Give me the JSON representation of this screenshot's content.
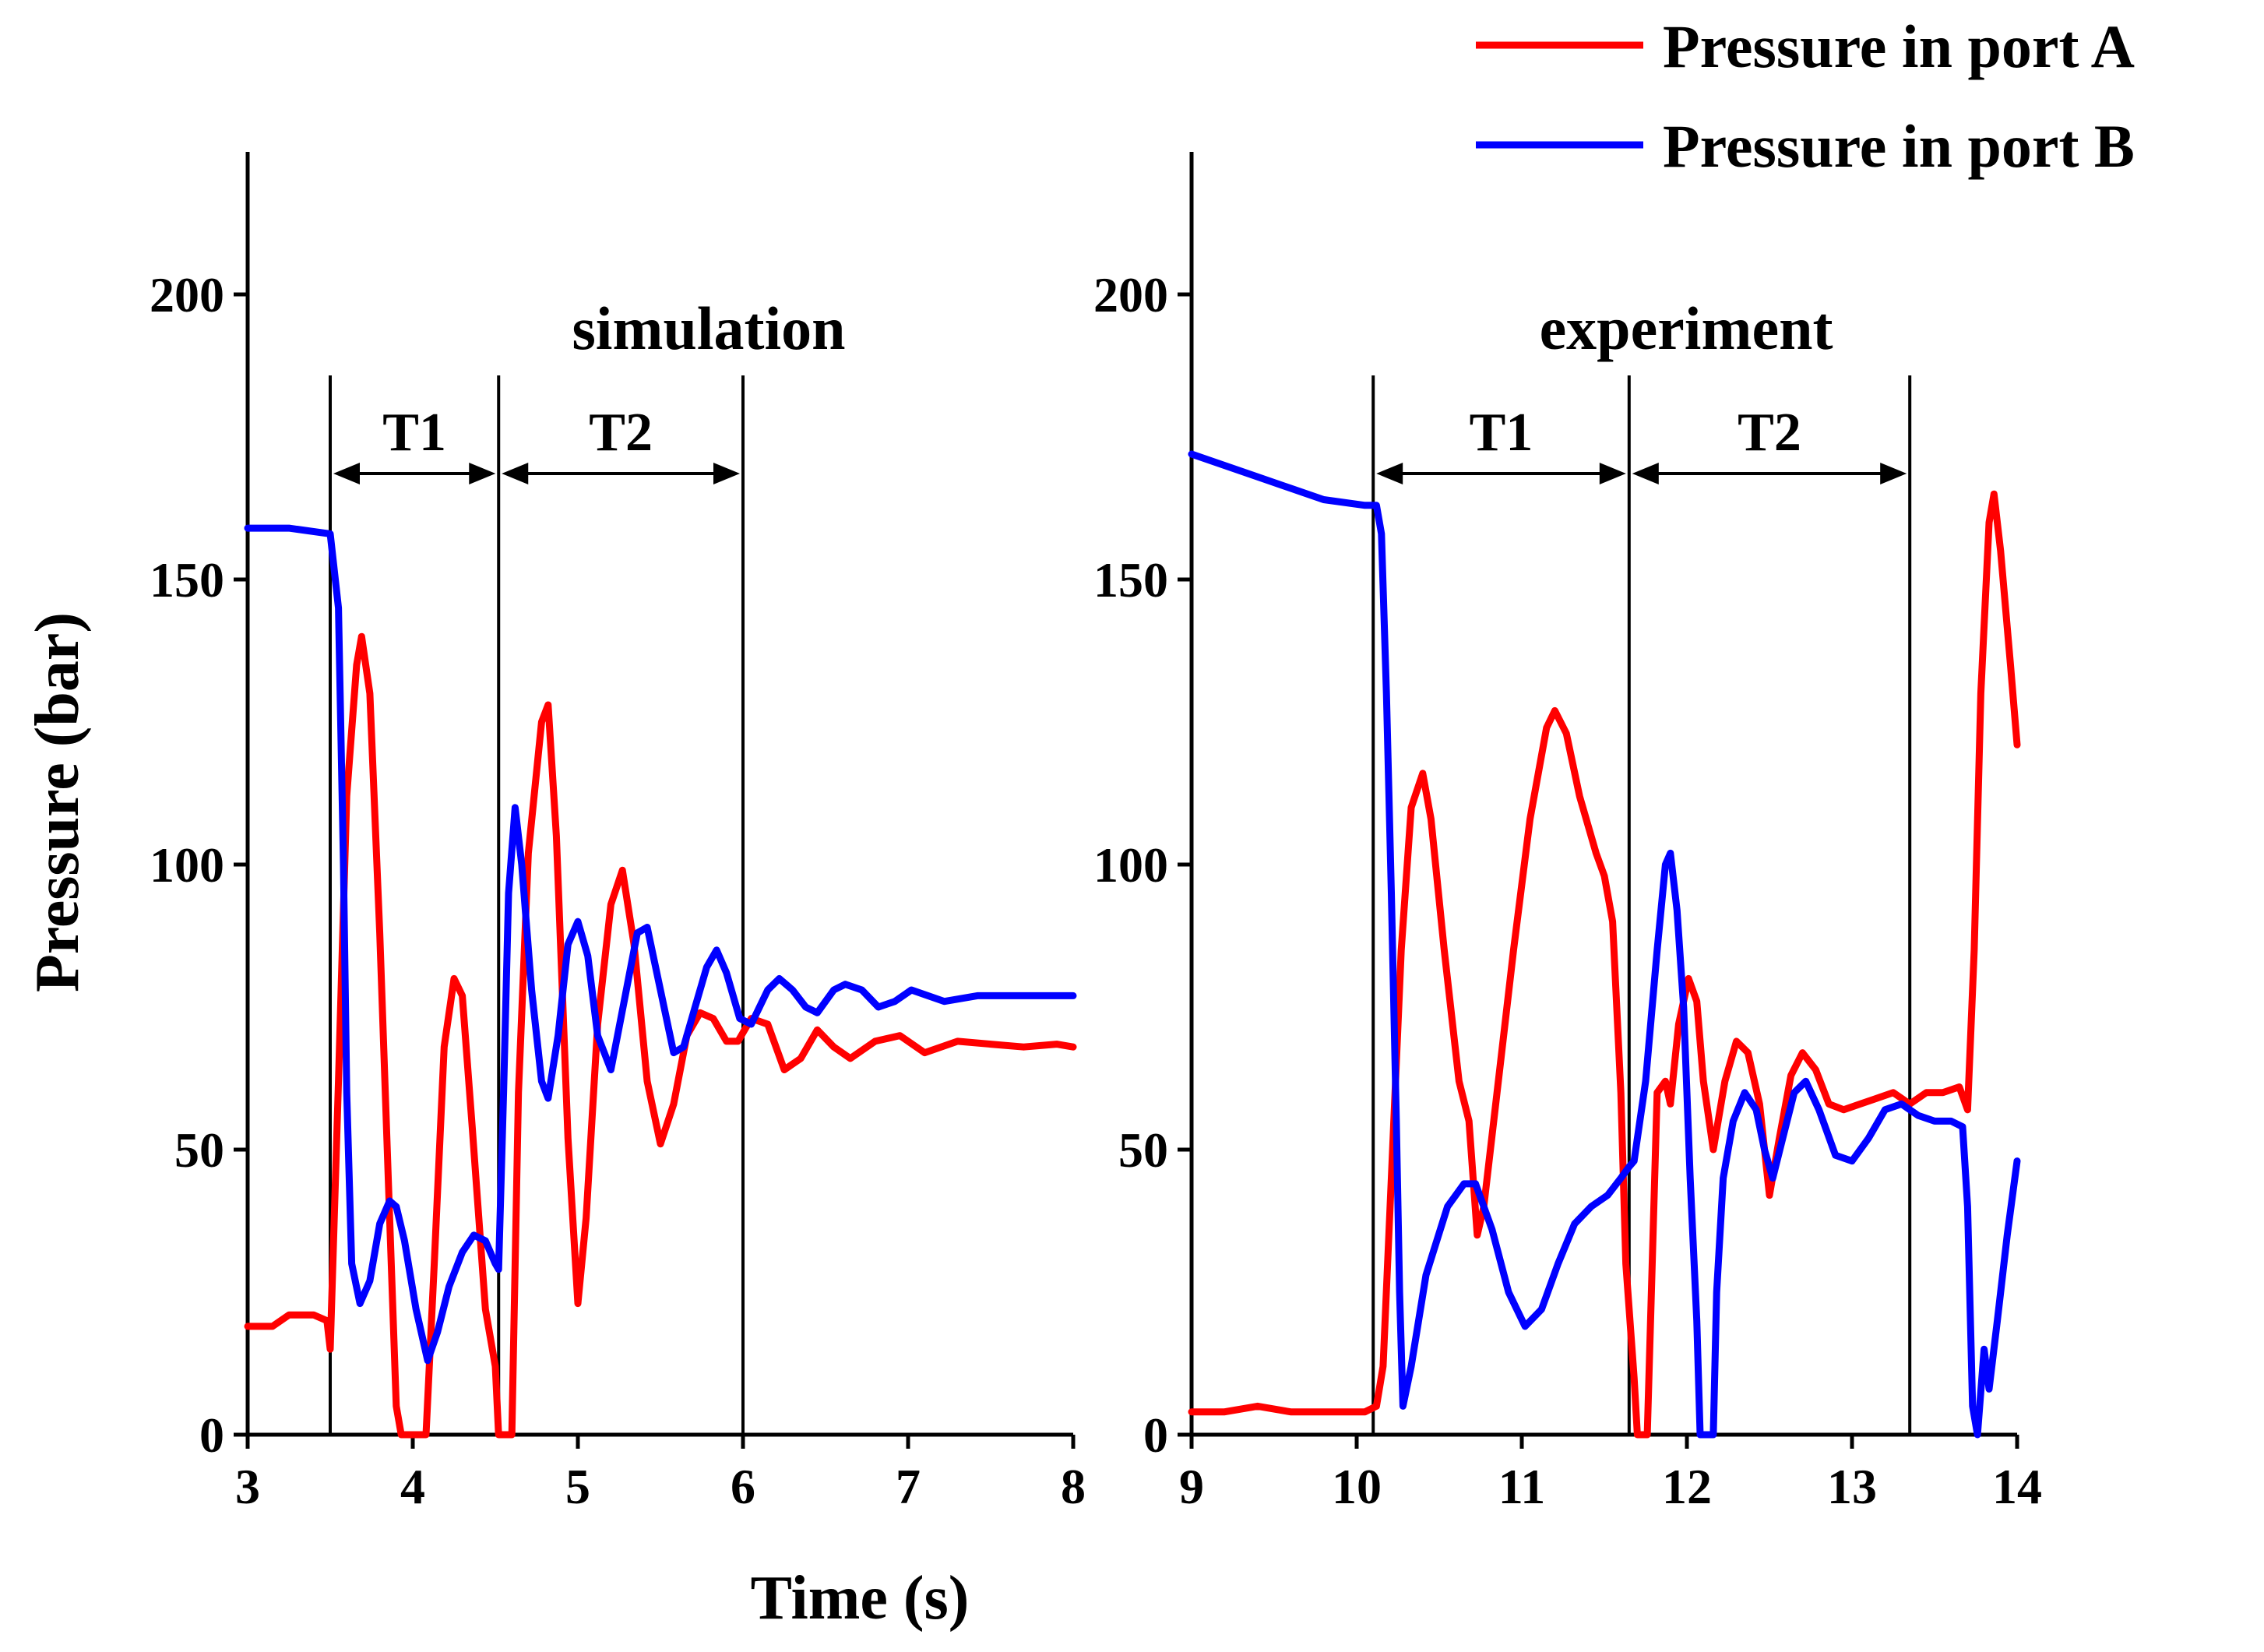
{
  "chart_data": [
    {
      "type": "line",
      "panel_label": "simulation",
      "xlim": [
        3,
        8
      ],
      "ylim": [
        0,
        225
      ],
      "x_ticks": [
        3,
        4,
        5,
        6,
        7,
        8
      ],
      "y_ticks": [
        0,
        50,
        100,
        150,
        200
      ],
      "phase_markers": [
        3.5,
        4.52,
        6.0
      ],
      "phases": [
        {
          "label": "T1",
          "from": 3.5,
          "to": 4.52
        },
        {
          "label": "T2",
          "from": 4.52,
          "to": 6.0
        }
      ],
      "series": [
        {
          "name": "Pressure in port A",
          "color": "#ff0000",
          "points": [
            [
              3.0,
              19
            ],
            [
              3.15,
              19
            ],
            [
              3.25,
              21
            ],
            [
              3.4,
              21
            ],
            [
              3.48,
              20
            ],
            [
              3.5,
              15
            ],
            [
              3.55,
              62
            ],
            [
              3.6,
              112
            ],
            [
              3.66,
              135
            ],
            [
              3.69,
              140
            ],
            [
              3.74,
              130
            ],
            [
              3.8,
              88
            ],
            [
              3.86,
              38
            ],
            [
              3.9,
              5
            ],
            [
              3.93,
              0
            ],
            [
              4.08,
              0
            ],
            [
              4.13,
              30
            ],
            [
              4.19,
              68
            ],
            [
              4.25,
              80
            ],
            [
              4.3,
              77
            ],
            [
              4.36,
              54
            ],
            [
              4.44,
              22
            ],
            [
              4.5,
              12
            ],
            [
              4.52,
              0
            ],
            [
              4.55,
              0
            ],
            [
              4.6,
              0
            ],
            [
              4.64,
              60
            ],
            [
              4.7,
              102
            ],
            [
              4.78,
              125
            ],
            [
              4.82,
              128
            ],
            [
              4.87,
              105
            ],
            [
              4.94,
              52
            ],
            [
              5.0,
              23
            ],
            [
              5.05,
              38
            ],
            [
              5.12,
              72
            ],
            [
              5.2,
              93
            ],
            [
              5.27,
              99
            ],
            [
              5.34,
              86
            ],
            [
              5.42,
              62
            ],
            [
              5.5,
              51
            ],
            [
              5.58,
              58
            ],
            [
              5.66,
              70
            ],
            [
              5.74,
              74
            ],
            [
              5.82,
              73
            ],
            [
              5.9,
              69
            ],
            [
              5.97,
              69
            ],
            [
              6.05,
              73
            ],
            [
              6.15,
              72
            ],
            [
              6.25,
              64
            ],
            [
              6.35,
              66
            ],
            [
              6.45,
              71
            ],
            [
              6.55,
              68
            ],
            [
              6.65,
              66
            ],
            [
              6.8,
              69
            ],
            [
              6.95,
              70
            ],
            [
              7.1,
              67
            ],
            [
              7.3,
              69
            ],
            [
              7.5,
              68.5
            ],
            [
              7.7,
              68
            ],
            [
              7.9,
              68.5
            ],
            [
              8.0,
              68
            ]
          ]
        },
        {
          "name": "Pressure in port B",
          "color": "#0000ff",
          "points": [
            [
              3.0,
              159
            ],
            [
              3.25,
              159
            ],
            [
              3.5,
              158
            ],
            [
              3.55,
              145
            ],
            [
              3.58,
              100
            ],
            [
              3.6,
              60
            ],
            [
              3.63,
              30
            ],
            [
              3.68,
              23
            ],
            [
              3.74,
              27
            ],
            [
              3.8,
              37
            ],
            [
              3.86,
              41
            ],
            [
              3.9,
              40
            ],
            [
              3.95,
              34
            ],
            [
              4.02,
              22
            ],
            [
              4.09,
              13
            ],
            [
              4.15,
              18
            ],
            [
              4.22,
              26
            ],
            [
              4.3,
              32
            ],
            [
              4.37,
              35
            ],
            [
              4.44,
              34
            ],
            [
              4.5,
              30
            ],
            [
              4.52,
              29
            ],
            [
              4.55,
              60
            ],
            [
              4.58,
              95
            ],
            [
              4.62,
              110
            ],
            [
              4.66,
              100
            ],
            [
              4.72,
              78
            ],
            [
              4.78,
              62
            ],
            [
              4.82,
              59
            ],
            [
              4.88,
              70
            ],
            [
              4.94,
              86
            ],
            [
              5.0,
              90
            ],
            [
              5.06,
              84
            ],
            [
              5.12,
              70
            ],
            [
              5.2,
              64
            ],
            [
              5.28,
              76
            ],
            [
              5.36,
              88
            ],
            [
              5.42,
              89
            ],
            [
              5.5,
              78
            ],
            [
              5.58,
              67
            ],
            [
              5.64,
              68
            ],
            [
              5.72,
              76
            ],
            [
              5.78,
              82
            ],
            [
              5.84,
              85
            ],
            [
              5.9,
              81
            ],
            [
              5.98,
              73
            ],
            [
              6.05,
              72
            ],
            [
              6.15,
              78
            ],
            [
              6.22,
              80
            ],
            [
              6.3,
              78
            ],
            [
              6.38,
              75
            ],
            [
              6.45,
              74
            ],
            [
              6.55,
              78
            ],
            [
              6.62,
              79
            ],
            [
              6.72,
              78
            ],
            [
              6.82,
              75
            ],
            [
              6.92,
              76
            ],
            [
              7.02,
              78
            ],
            [
              7.12,
              77
            ],
            [
              7.22,
              76
            ],
            [
              7.42,
              77
            ],
            [
              7.62,
              77
            ],
            [
              7.82,
              77
            ],
            [
              8.0,
              77
            ]
          ]
        }
      ]
    },
    {
      "type": "line",
      "panel_label": "experiment",
      "xlim": [
        9,
        14
      ],
      "ylim": [
        0,
        225
      ],
      "x_ticks": [
        9,
        10,
        11,
        12,
        13,
        14
      ],
      "y_ticks": [
        0,
        50,
        100,
        150,
        200
      ],
      "phase_markers": [
        10.1,
        11.65,
        13.35
      ],
      "phases": [
        {
          "label": "T1",
          "from": 10.1,
          "to": 11.65
        },
        {
          "label": "T2",
          "from": 11.65,
          "to": 13.35
        }
      ],
      "series": [
        {
          "name": "Pressure in port A",
          "color": "#ff0000",
          "points": [
            [
              9.0,
              4
            ],
            [
              9.2,
              4
            ],
            [
              9.4,
              5
            ],
            [
              9.6,
              4
            ],
            [
              9.8,
              4
            ],
            [
              10.05,
              4
            ],
            [
              10.12,
              5
            ],
            [
              10.16,
              12
            ],
            [
              10.21,
              45
            ],
            [
              10.27,
              85
            ],
            [
              10.33,
              110
            ],
            [
              10.4,
              116
            ],
            [
              10.45,
              108
            ],
            [
              10.53,
              85
            ],
            [
              10.62,
              62
            ],
            [
              10.68,
              55
            ],
            [
              10.73,
              35
            ],
            [
              10.77,
              40
            ],
            [
              10.85,
              60
            ],
            [
              10.95,
              85
            ],
            [
              11.05,
              108
            ],
            [
              11.15,
              124
            ],
            [
              11.2,
              127
            ],
            [
              11.27,
              123
            ],
            [
              11.35,
              112
            ],
            [
              11.45,
              102
            ],
            [
              11.5,
              98
            ],
            [
              11.55,
              90
            ],
            [
              11.6,
              60
            ],
            [
              11.63,
              30
            ],
            [
              11.68,
              10
            ],
            [
              11.7,
              0
            ],
            [
              11.76,
              0
            ],
            [
              11.82,
              60
            ],
            [
              11.87,
              62
            ],
            [
              11.9,
              58
            ],
            [
              11.95,
              72
            ],
            [
              12.01,
              80
            ],
            [
              12.06,
              76
            ],
            [
              12.1,
              62
            ],
            [
              12.16,
              50
            ],
            [
              12.23,
              62
            ],
            [
              12.3,
              69
            ],
            [
              12.37,
              67
            ],
            [
              12.44,
              58
            ],
            [
              12.5,
              42
            ],
            [
              12.56,
              52
            ],
            [
              12.63,
              63
            ],
            [
              12.7,
              67
            ],
            [
              12.78,
              64
            ],
            [
              12.86,
              58
            ],
            [
              12.95,
              57
            ],
            [
              13.05,
              58
            ],
            [
              13.15,
              59
            ],
            [
              13.25,
              60
            ],
            [
              13.35,
              58
            ],
            [
              13.45,
              60
            ],
            [
              13.55,
              60
            ],
            [
              13.65,
              61
            ],
            [
              13.7,
              57
            ],
            [
              13.74,
              85
            ],
            [
              13.78,
              130
            ],
            [
              13.83,
              160
            ],
            [
              13.86,
              165
            ],
            [
              13.9,
              155
            ],
            [
              13.96,
              135
            ],
            [
              14.0,
              121
            ]
          ]
        },
        {
          "name": "Pressure in port B",
          "color": "#0000ff",
          "points": [
            [
              9.0,
              172
            ],
            [
              9.2,
              170
            ],
            [
              9.4,
              168
            ],
            [
              9.6,
              166
            ],
            [
              9.8,
              164
            ],
            [
              10.05,
              163
            ],
            [
              10.12,
              163
            ],
            [
              10.15,
              158
            ],
            [
              10.18,
              130
            ],
            [
              10.21,
              95
            ],
            [
              10.24,
              55
            ],
            [
              10.26,
              25
            ],
            [
              10.28,
              5
            ],
            [
              10.33,
              12
            ],
            [
              10.42,
              28
            ],
            [
              10.55,
              40
            ],
            [
              10.65,
              44
            ],
            [
              10.72,
              44
            ],
            [
              10.82,
              36
            ],
            [
              10.92,
              25
            ],
            [
              11.02,
              19
            ],
            [
              11.12,
              22
            ],
            [
              11.22,
              30
            ],
            [
              11.32,
              37
            ],
            [
              11.42,
              40
            ],
            [
              11.52,
              42
            ],
            [
              11.6,
              45
            ],
            [
              11.65,
              47
            ],
            [
              11.68,
              48
            ],
            [
              11.75,
              62
            ],
            [
              11.82,
              85
            ],
            [
              11.87,
              100
            ],
            [
              11.9,
              102
            ],
            [
              11.94,
              92
            ],
            [
              11.98,
              75
            ],
            [
              12.02,
              45
            ],
            [
              12.06,
              20
            ],
            [
              12.08,
              0
            ],
            [
              12.16,
              0
            ],
            [
              12.18,
              25
            ],
            [
              12.22,
              45
            ],
            [
              12.28,
              55
            ],
            [
              12.35,
              60
            ],
            [
              12.42,
              57
            ],
            [
              12.47,
              50
            ],
            [
              12.52,
              45
            ],
            [
              12.58,
              52
            ],
            [
              12.65,
              60
            ],
            [
              12.72,
              62
            ],
            [
              12.8,
              57
            ],
            [
              12.9,
              49
            ],
            [
              13.0,
              48
            ],
            [
              13.1,
              52
            ],
            [
              13.2,
              57
            ],
            [
              13.3,
              58
            ],
            [
              13.4,
              56
            ],
            [
              13.5,
              55
            ],
            [
              13.6,
              55
            ],
            [
              13.67,
              54
            ],
            [
              13.7,
              40
            ],
            [
              13.73,
              5
            ],
            [
              13.76,
              0
            ],
            [
              13.8,
              15
            ],
            [
              13.83,
              8
            ],
            [
              13.88,
              20
            ],
            [
              13.94,
              35
            ],
            [
              14.0,
              48
            ]
          ]
        }
      ]
    }
  ],
  "axes": {
    "xlabel": "Time (s)",
    "ylabel": "Pressure (bar)"
  },
  "legend": [
    {
      "label": "Pressure in port A",
      "color": "#ff0000"
    },
    {
      "label": "Pressure in port B",
      "color": "#0000ff"
    }
  ]
}
